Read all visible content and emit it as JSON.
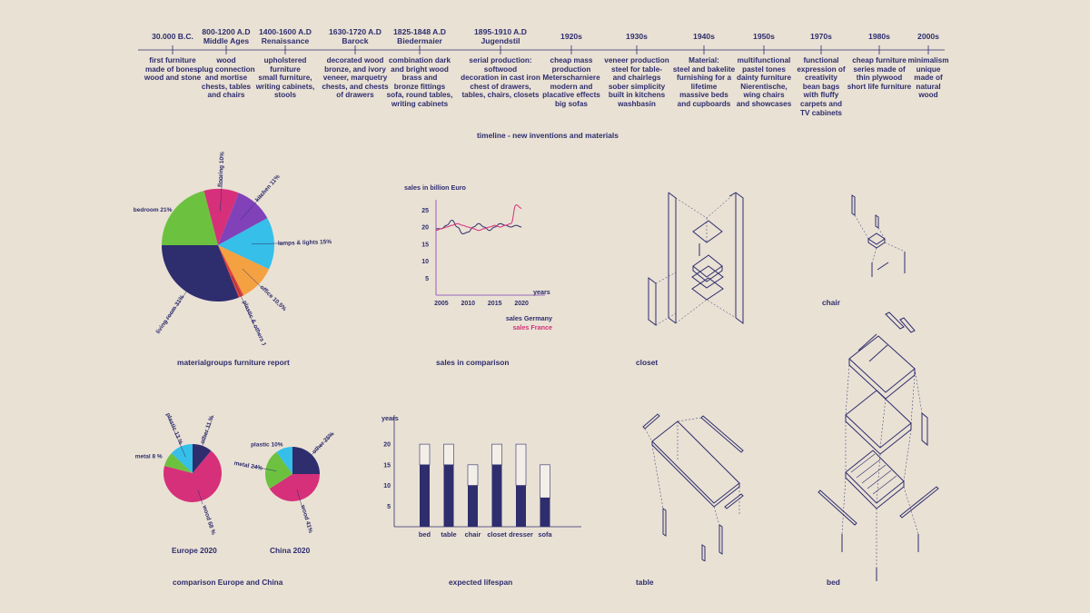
{
  "timeline": {
    "caption": "timeline - new inventions and materials",
    "entries": [
      {
        "date": [
          "30.000 B.C."
        ],
        "desc": [
          "first furniture",
          "made of bones,",
          "wood and stone"
        ]
      },
      {
        "date": [
          "800-1200 A.D",
          "Middle Ages"
        ],
        "desc": [
          "wood",
          "plug connection",
          "and mortise",
          "chests, tables",
          "and chairs"
        ]
      },
      {
        "date": [
          "1400-1600 A.D",
          "Renaissance"
        ],
        "desc": [
          "upholstered",
          "furniture",
          "small furniture,",
          "writing cabinets,",
          "stools"
        ]
      },
      {
        "date": [
          "1630-1720 A.D",
          "Barock"
        ],
        "desc": [
          "decorated wood",
          "bronze, and ivory",
          "veneer, marquetry",
          "chests, and chests",
          "of drawers"
        ]
      },
      {
        "date": [
          "1825-1848 A.D",
          "Biedermaier"
        ],
        "desc": [
          "combination dark",
          "and bright wood",
          "brass and",
          "bronze fittings",
          "sofa, round tables,",
          "writing cabinets"
        ]
      },
      {
        "date": [
          "1895-1910 A.D",
          "Jugendstil"
        ],
        "desc": [
          "serial production:",
          "softwood",
          "decoration in cast iron",
          "chest of drawers,",
          "tables, chairs, closets"
        ]
      },
      {
        "date": [
          "1920s"
        ],
        "desc": [
          "cheap mass",
          "production",
          "Meterscharniere",
          "modern and",
          "placative effects",
          "big sofas"
        ]
      },
      {
        "date": [
          "1930s"
        ],
        "desc": [
          "veneer production",
          "steel for table-",
          "and chairlegs",
          "sober simplicity",
          "built in kitchens",
          "washbasin"
        ]
      },
      {
        "date": [
          "1940s"
        ],
        "desc": [
          "Material:",
          "steel and bakelite",
          "furnishing for a",
          "lifetime",
          "massive beds",
          "and cupboards"
        ]
      },
      {
        "date": [
          "1950s"
        ],
        "desc": [
          "multifunctional",
          "pastel tones",
          "dainty furniture",
          "Nierentische,",
          "wing chairs",
          "and showcases"
        ]
      },
      {
        "date": [
          "1970s"
        ],
        "desc": [
          "functional",
          "expression of",
          "creativity",
          "bean bags",
          "with fluffy",
          "carpets and",
          "TV cabinets"
        ]
      },
      {
        "date": [
          "1980s"
        ],
        "desc": [
          "cheap furniture",
          "series made of",
          "thin plywood",
          "short life furniture"
        ]
      },
      {
        "date": [
          "2000s"
        ],
        "desc": [
          "minimalism",
          "unique",
          "made of",
          "natural",
          "wood"
        ]
      }
    ]
  },
  "colors": {
    "text": "#2e2d6e",
    "background": "#e9e1d4",
    "navy": "#2e2d6e",
    "green": "#6cc23f",
    "magenta": "#d6307a",
    "purple": "#8141b8",
    "cyan": "#35bfe9",
    "orange": "#f4a142",
    "red": "#e0403c",
    "france": "#d6307a"
  },
  "captions": {
    "pie_report": "materialgroups furniture report",
    "sales": "sales in comparison",
    "closet": "closet",
    "chair": "chair",
    "comparison": "comparison Europe and China",
    "lifespan": "expected lifespan",
    "table": "table",
    "bed": "bed",
    "europe": "Europe 2020",
    "china": "China 2020"
  },
  "chart_data": [
    {
      "type": "pie",
      "title": "materialgroups furniture report",
      "slices": [
        {
          "label": "bedroom 21%",
          "value": 21,
          "color": "#6cc23f"
        },
        {
          "label": "flooring 10%",
          "value": 10,
          "color": "#d6307a"
        },
        {
          "label": "kitchen 11%",
          "value": 11,
          "color": "#8141b8"
        },
        {
          "label": "lamps & lights 15%",
          "value": 15,
          "color": "#35bfe9"
        },
        {
          "label": "office 10,5%",
          "value": 10.5,
          "color": "#f4a142"
        },
        {
          "label": "plastic & others 1,5%",
          "value": 1.5,
          "color": "#e0403c"
        },
        {
          "label": "living room 31%",
          "value": 31,
          "color": "#2e2d6e"
        }
      ]
    },
    {
      "type": "line",
      "title": "sales in comparison",
      "ylabel": "sales in billion Euro",
      "xlabel": "years",
      "xticks": [
        2005,
        2010,
        2015,
        2020
      ],
      "yticks": [
        5,
        10,
        15,
        20,
        25
      ],
      "xlim": [
        2004,
        2021
      ],
      "ylim": [
        0,
        28
      ],
      "series": [
        {
          "name": "sales Germany",
          "color": "#2e2d6e",
          "x": [
            2004,
            2005,
            2006,
            2007,
            2008,
            2009,
            2010,
            2011,
            2012,
            2013,
            2014,
            2015,
            2016,
            2017,
            2018,
            2019,
            2020
          ],
          "y": [
            19.5,
            19.5,
            20.5,
            22,
            20,
            18,
            18.5,
            20,
            21,
            20,
            19,
            20,
            21,
            20.5,
            20,
            20.5,
            20
          ]
        },
        {
          "name": "sales France",
          "color": "#d6307a",
          "x": [
            2004,
            2005,
            2006,
            2007,
            2008,
            2009,
            2010,
            2011,
            2012,
            2013,
            2014,
            2015,
            2016,
            2017,
            2018,
            2019,
            2020
          ],
          "y": [
            19,
            19.5,
            20,
            20.5,
            21,
            20.5,
            20,
            19.5,
            19,
            19.5,
            20,
            20.5,
            20,
            20.5,
            21,
            26.5,
            25.5
          ]
        }
      ]
    },
    {
      "type": "pie",
      "title": "Europe 2020",
      "slices": [
        {
          "label": "other 11 %",
          "value": 11,
          "color": "#2e2d6e"
        },
        {
          "label": "wood 68 %",
          "value": 68,
          "color": "#d6307a"
        },
        {
          "label": "metal 8 %",
          "value": 8,
          "color": "#6cc23f"
        },
        {
          "label": "plastic 13 %",
          "value": 13,
          "color": "#35bfe9"
        }
      ]
    },
    {
      "type": "pie",
      "title": "China 2020",
      "slices": [
        {
          "label": "other 25%",
          "value": 25,
          "color": "#2e2d6e"
        },
        {
          "label": "wood 41%",
          "value": 41,
          "color": "#d6307a"
        },
        {
          "label": "metal 24%",
          "value": 24,
          "color": "#6cc23f"
        },
        {
          "label": "plastic 10%",
          "value": 10,
          "color": "#35bfe9"
        }
      ]
    },
    {
      "type": "bar",
      "title": "expected lifespan",
      "ylabel": "years",
      "categories": [
        "bed",
        "table",
        "chair",
        "closet",
        "dresser",
        "sofa"
      ],
      "yticks": [
        5,
        10,
        15,
        20
      ],
      "ylim": [
        0,
        22
      ],
      "series": [
        {
          "name": "",
          "values": [
            15,
            15,
            10,
            15,
            10,
            7
          ],
          "color": "#2e2d6e"
        },
        {
          "name": "",
          "values": [
            20,
            20,
            15,
            20,
            20,
            15
          ],
          "color": "#f3efe8"
        }
      ]
    }
  ]
}
